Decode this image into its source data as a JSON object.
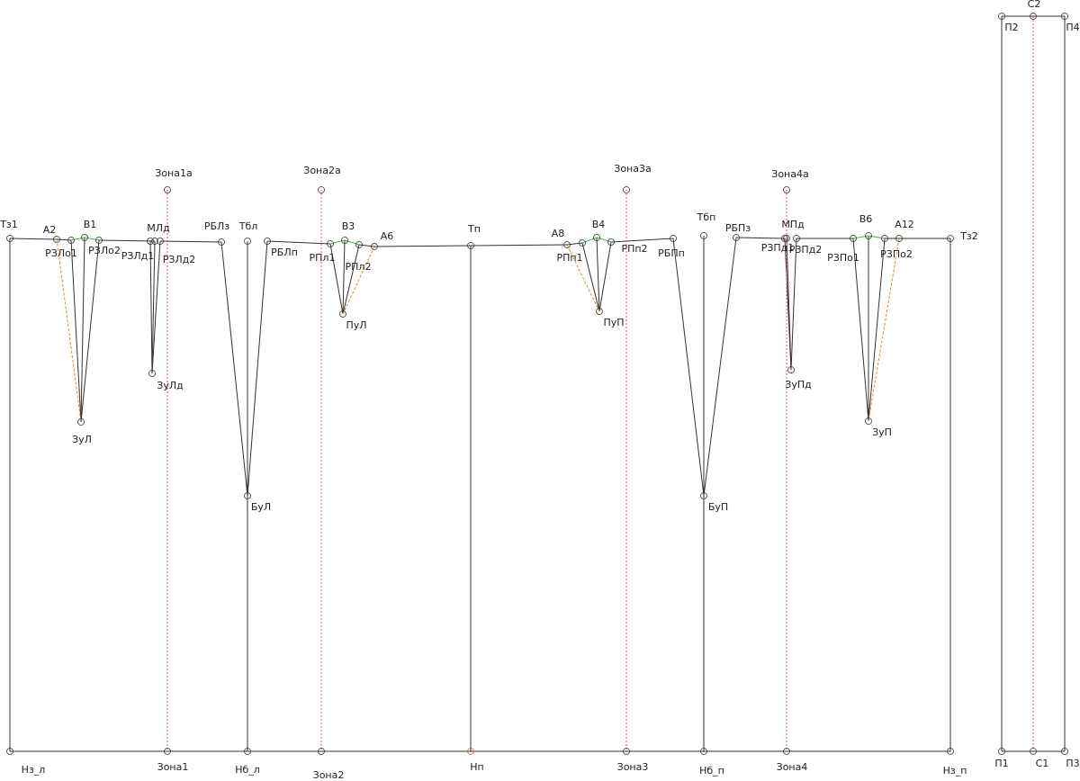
{
  "points": [
    "Тз1",
    "А2",
    "РЗЛо1",
    "В1",
    "РЗЛо2",
    "ЗуЛ",
    "МЛд",
    "РЗЛд1",
    "РЗЛд2",
    "ЗуЛд",
    "РБЛз",
    "Тбл",
    "РБЛп",
    "БуЛ",
    "Зона1а",
    "Зона1",
    "Нз_л",
    "Нб_л",
    "Зона2а",
    "Зона2",
    "РПл1",
    "В3",
    "РПл2",
    "А6",
    "ПуЛ",
    "Тп",
    "Нп",
    "А8",
    "РПп1",
    "В4",
    "РПп2",
    "ПуП",
    "РБПп",
    "Зона3а",
    "Зона3",
    "Тбп",
    "РБПз",
    "БуП",
    "Нб_п",
    "МПд",
    "РЗПд1",
    "РЗПд2",
    "ЗуПд",
    "Зона4а",
    "Зона4",
    "РЗПо1",
    "В6",
    "РЗПо2",
    "А12",
    "ЗуП",
    "Тз2",
    "Нз_п",
    "С2",
    "П2",
    "П4",
    "С1",
    "П1",
    "П3"
  ]
}
